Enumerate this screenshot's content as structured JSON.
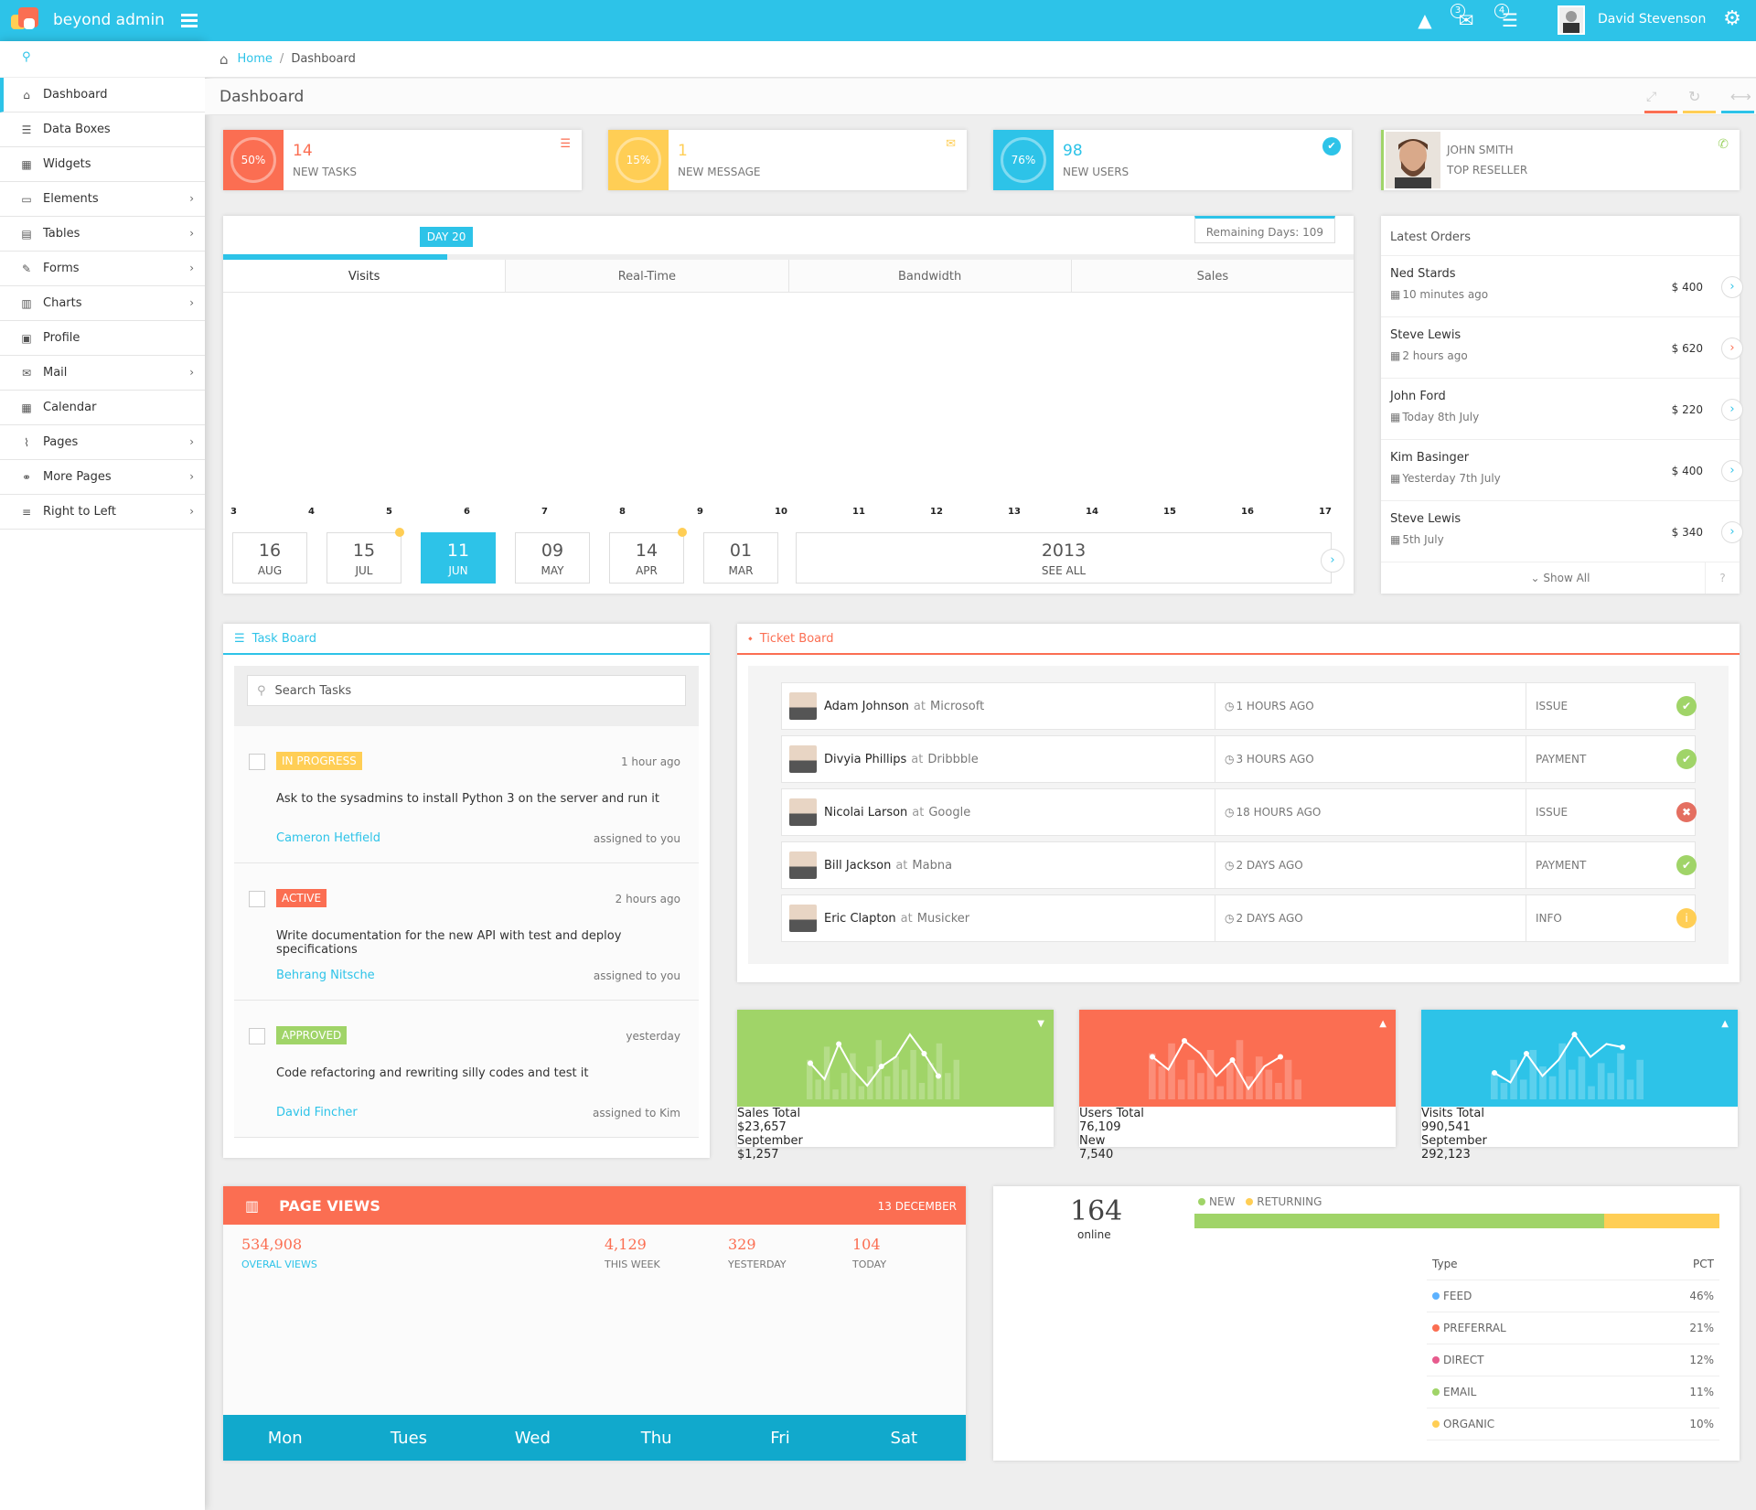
{
  "topbar": {
    "brand": "beyond admin",
    "user": "David Stevenson",
    "msg_badge": "3",
    "task_badge": "4"
  },
  "sidebar": {
    "items": [
      {
        "label": "Dashboard",
        "icon": "home-icon",
        "glyph": "⌂",
        "chev": ""
      },
      {
        "label": "Data Boxes",
        "icon": "data-boxes-icon",
        "glyph": "☰",
        "chev": ""
      },
      {
        "label": "Widgets",
        "icon": "widgets-icon",
        "glyph": "▦",
        "chev": ""
      },
      {
        "label": "Elements",
        "icon": "desktop-icon",
        "glyph": "▭",
        "chev": "›"
      },
      {
        "label": "Tables",
        "icon": "table-icon",
        "glyph": "▤",
        "chev": "›"
      },
      {
        "label": "Forms",
        "icon": "pencil-icon",
        "glyph": "✎",
        "chev": "›"
      },
      {
        "label": "Charts",
        "icon": "bar-chart-icon",
        "glyph": "▥",
        "chev": "›"
      },
      {
        "label": "Profile",
        "icon": "picture-icon",
        "glyph": "▣",
        "chev": ""
      },
      {
        "label": "Mail",
        "icon": "envelope-icon",
        "glyph": "✉",
        "chev": "›"
      },
      {
        "label": "Calendar",
        "icon": "calendar-icon",
        "glyph": "▦",
        "chev": ""
      },
      {
        "label": "Pages",
        "icon": "paperclip-icon",
        "glyph": "⌇",
        "chev": "›"
      },
      {
        "label": "More Pages",
        "icon": "link-icon",
        "glyph": "⚭",
        "chev": "›"
      },
      {
        "label": "Right to Left",
        "icon": "align-right-icon",
        "glyph": "≡",
        "chev": "›"
      }
    ]
  },
  "breadcrumb": {
    "home": "Home",
    "sep": "/",
    "current": "Dashboard"
  },
  "page_title": "Dashboard",
  "stats": [
    {
      "pct": "50%",
      "value": "14",
      "label": "NEW TASKS",
      "color": "#fb6e52"
    },
    {
      "pct": "15%",
      "value": "1",
      "label": "NEW MESSAGE",
      "color": "#ffce55"
    },
    {
      "pct": "76%",
      "value": "98",
      "label": "NEW USERS",
      "color": "#2dc3e8"
    }
  ],
  "reseller": {
    "name": "JOHN SMITH",
    "role": "TOP RESELLER"
  },
  "visits": {
    "day_tag": "DAY 20",
    "remaining": "Remaining Days: 109",
    "progress": 0.198,
    "tabs": [
      "Visits",
      "Real-Time",
      "Bandwidth",
      "Sales"
    ],
    "axis": [
      "3",
      "4",
      "5",
      "6",
      "7",
      "8",
      "9",
      "10",
      "11",
      "12",
      "13",
      "14",
      "15",
      "16",
      "17"
    ],
    "dates": [
      {
        "d": "16",
        "m": "AUG"
      },
      {
        "d": "15",
        "m": "JUL"
      },
      {
        "d": "11",
        "m": "JUN"
      },
      {
        "d": "09",
        "m": "MAY"
      },
      {
        "d": "14",
        "m": "APR"
      },
      {
        "d": "01",
        "m": "MAR"
      }
    ],
    "year": "2013",
    "see_all": "SEE ALL"
  },
  "orders": {
    "title": "Latest Orders",
    "items": [
      {
        "name": "Ned Stards",
        "time": "10 minutes ago",
        "price": "$ 400"
      },
      {
        "name": "Steve Lewis",
        "time": "2 hours ago",
        "price": "$ 620"
      },
      {
        "name": "John Ford",
        "time": "Today 8th July",
        "price": "$ 220"
      },
      {
        "name": "Kim Basinger",
        "time": "Yesterday 7th July",
        "price": "$ 400"
      },
      {
        "name": "Steve Lewis",
        "time": "5th July",
        "price": "$ 340"
      }
    ],
    "show_all": "Show All",
    "help": "?"
  },
  "taskboard": {
    "title": "Task Board",
    "search_placeholder": "Search Tasks",
    "tasks": [
      {
        "label": "IN PROGRESS",
        "time": "1 hour ago",
        "text": "Ask to the sysadmins to install Python 3 on the server and run it",
        "user": "Cameron Hetfield",
        "assigned": "assigned to you",
        "color": "#ffce55"
      },
      {
        "label": "ACTIVE",
        "time": "2 hours ago",
        "text": "Write documentation for the new API with test and deploy specifications",
        "user": "Behrang Nitsche",
        "assigned": "assigned to you",
        "color": "#fb6e52"
      },
      {
        "label": "APPROVED",
        "time": "yesterday",
        "text": "Code refactoring and rewriting silly codes and test it",
        "user": "David Fincher",
        "assigned": "assigned to Kim",
        "color": "#a0d468"
      }
    ]
  },
  "ticketboard": {
    "title": "Ticket Board",
    "tickets": [
      {
        "name": "Adam Johnson",
        "at": "at",
        "company": "Microsoft",
        "ago": "1 HOURS AGO",
        "type": "ISSUE",
        "status": "ok"
      },
      {
        "name": "Divyia Phillips",
        "at": "at",
        "company": "Dribbble",
        "ago": "3 HOURS AGO",
        "type": "PAYMENT",
        "status": "ok"
      },
      {
        "name": "Nicolai Larson",
        "at": "at",
        "company": "Google",
        "ago": "18 HOURS AGO",
        "type": "ISSUE",
        "status": "error"
      },
      {
        "name": "Bill Jackson",
        "at": "at",
        "company": "Mabna",
        "ago": "2 DAYS AGO",
        "type": "PAYMENT",
        "status": "ok"
      },
      {
        "name": "Eric Clapton",
        "at": "at",
        "company": "Musicker",
        "ago": "2 DAYS AGO",
        "type": "INFO",
        "status": "info"
      }
    ]
  },
  "sparks": [
    {
      "l1": "Sales Total",
      "l2": "$23,657",
      "r1": "September",
      "r2": "$1,257",
      "color": "#a0d468",
      "line": [
        0.45,
        0.2,
        0.75,
        0.35,
        0.1,
        0.4,
        0.55,
        0.9,
        0.6,
        0.25
      ],
      "bars": [
        0.6,
        0.3,
        0.8,
        0.15,
        0.4,
        0.7,
        0.2,
        0.5,
        0.9,
        0.35,
        0.65,
        0.45,
        0.75,
        0.25,
        0.55,
        0.85,
        0.4,
        0.6
      ]
    },
    {
      "l1": "Users Total",
      "l2": "76,109",
      "r1": "New",
      "r2": "7,540",
      "color": "#fb6e52",
      "line": [
        0.55,
        0.35,
        0.8,
        0.6,
        0.25,
        0.5,
        0.05,
        0.4,
        0.55
      ],
      "bars": [
        0.7,
        0.5,
        0.85,
        0.3,
        0.6,
        0.4,
        0.75,
        0.2,
        0.55,
        0.9,
        0.35,
        0.65,
        0.45,
        0.25,
        0.6,
        0.3
      ]
    },
    {
      "l1": "Visits Total",
      "l2": "990,541",
      "r1": "September",
      "r2": "292,123",
      "color": "#2dc3e8",
      "line": [
        0.3,
        0.15,
        0.6,
        0.25,
        0.5,
        0.9,
        0.55,
        0.75,
        0.7
      ],
      "bars": [
        0.4,
        0.25,
        0.6,
        0.3,
        0.75,
        0.5,
        0.35,
        0.85,
        0.45,
        0.65,
        0.2,
        0.55,
        0.4,
        0.7,
        0.3,
        0.6
      ]
    }
  ],
  "pageviews": {
    "title": "PAGE VIEWS",
    "date": "13 DECEMBER",
    "stats": [
      {
        "n": "534,908",
        "t": "OVERAL VIEWS"
      },
      {
        "n": "4,129",
        "t": "THIS WEEK"
      },
      {
        "n": "329",
        "t": "YESTERDAY"
      },
      {
        "n": "104",
        "t": "TODAY"
      }
    ],
    "days": [
      "Mon",
      "Tues",
      "Wed",
      "Thu",
      "Fri",
      "Sat"
    ]
  },
  "online": {
    "count": "164",
    "label": "online",
    "legend_new": "NEW",
    "legend_returning": "RETURNING",
    "new_share": 0.78,
    "col_type": "Type",
    "col_pct": "PCT",
    "rows": [
      {
        "type": "FEED",
        "pct": "46%",
        "color": "#5db2ff"
      },
      {
        "type": "PREFERRAL",
        "pct": "21%",
        "color": "#fb6e52"
      },
      {
        "type": "DIRECT",
        "pct": "12%",
        "color": "#e75b8d"
      },
      {
        "type": "EMAIL",
        "pct": "11%",
        "color": "#a0d468"
      },
      {
        "type": "ORGANIC",
        "pct": "10%",
        "color": "#ffce55"
      }
    ]
  }
}
